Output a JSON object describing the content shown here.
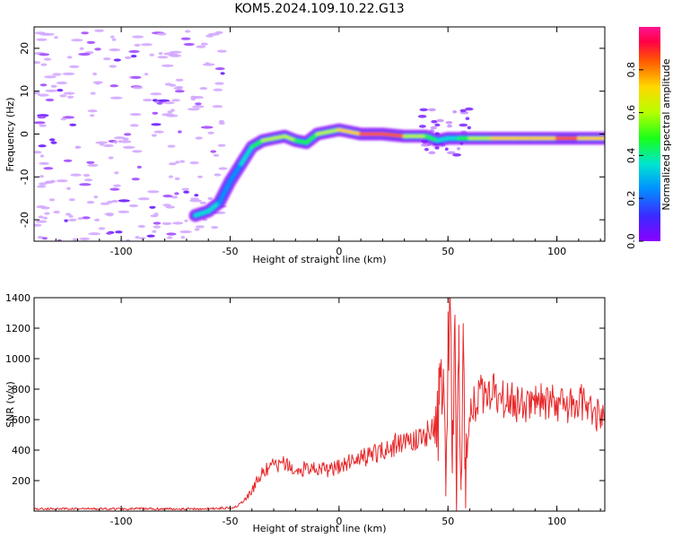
{
  "title": "KOM5.2024.109.10.22.G13",
  "colors": {
    "snr_line": "#e8292b",
    "background": "#ffffff",
    "colormap": [
      "#8a00ff",
      "#3a2bff",
      "#0094ff",
      "#00e5d0",
      "#19ff19",
      "#b6ff00",
      "#ffd800",
      "#ff5a00",
      "#ff0044",
      "#ff1493"
    ]
  },
  "chart_data": [
    {
      "type": "heatmap",
      "title": "",
      "xlabel": "Height of straight line (km)",
      "ylabel": "Frequency (Hz)",
      "xlim": [
        -140,
        122
      ],
      "ylim": [
        -25,
        25
      ],
      "xticks": [
        -100,
        -50,
        0,
        50,
        100
      ],
      "yticks": [
        -20,
        -10,
        0,
        10,
        20
      ],
      "grid": false,
      "ridge": {
        "x": [
          -66,
          -60,
          -55,
          -50,
          -45,
          -40,
          -35,
          -30,
          -25,
          -20,
          -15,
          -10,
          -5,
          0,
          10,
          20,
          30,
          40,
          45,
          50,
          55,
          60,
          70,
          80,
          90,
          100,
          110,
          122
        ],
        "y": [
          -19,
          -18,
          -16,
          -11,
          -7,
          -3,
          -1.5,
          -1,
          -0.5,
          -1.5,
          -2,
          0,
          0.5,
          1,
          0,
          0,
          -0.5,
          -0.5,
          -1.5,
          -1,
          -1,
          -1,
          -1,
          -1,
          -1,
          -1,
          -1,
          -1
        ],
        "amp": [
          0.25,
          0.4,
          0.3,
          0.25,
          0.3,
          0.45,
          0.5,
          0.55,
          0.6,
          0.5,
          0.45,
          0.5,
          0.55,
          0.6,
          0.7,
          0.8,
          0.7,
          0.5,
          0.35,
          0.4,
          0.35,
          0.5,
          0.6,
          0.65,
          0.6,
          0.7,
          0.75,
          0.6
        ]
      },
      "colorbar": {
        "label": "Normalized spectral amplitude",
        "range": [
          0.0,
          1.0
        ],
        "ticks": [
          "0.0",
          "0.2",
          "0.4",
          "0.6",
          "0.8"
        ]
      }
    },
    {
      "type": "line",
      "title": "",
      "xlabel": "Height of straight line (km)",
      "ylabel": "SNR (v/v)",
      "xlim": [
        -140,
        122
      ],
      "ylim": [
        0,
        1400
      ],
      "xticks": [
        -100,
        -50,
        0,
        50,
        100
      ],
      "yticks": [
        200,
        400,
        600,
        800,
        1000,
        1200,
        1400
      ],
      "grid": false,
      "series": [
        {
          "x": [
            -140,
            -120,
            -100,
            -80,
            -60,
            -48,
            -44,
            -40,
            -37,
            -34,
            -30,
            -25,
            -20,
            -15,
            -10,
            -5,
            0,
            5,
            10,
            15,
            20,
            25,
            30,
            35,
            40,
            44,
            46,
            48,
            49,
            50,
            51,
            52,
            53,
            54,
            55,
            56,
            57,
            58,
            60,
            62,
            65,
            70,
            75,
            80,
            85,
            90,
            95,
            100,
            105,
            110,
            115,
            118,
            122
          ],
          "values": [
            15,
            15,
            15,
            15,
            15,
            25,
            60,
            130,
            220,
            260,
            300,
            310,
            250,
            290,
            280,
            270,
            290,
            330,
            350,
            370,
            400,
            430,
            450,
            470,
            500,
            550,
            700,
            850,
            100,
            1050,
            1400,
            250,
            1200,
            70,
            1220,
            200,
            1230,
            350,
            620,
            700,
            760,
            820,
            750,
            720,
            680,
            740,
            700,
            720,
            690,
            700,
            730,
            620,
            650
          ]
        }
      ]
    }
  ]
}
